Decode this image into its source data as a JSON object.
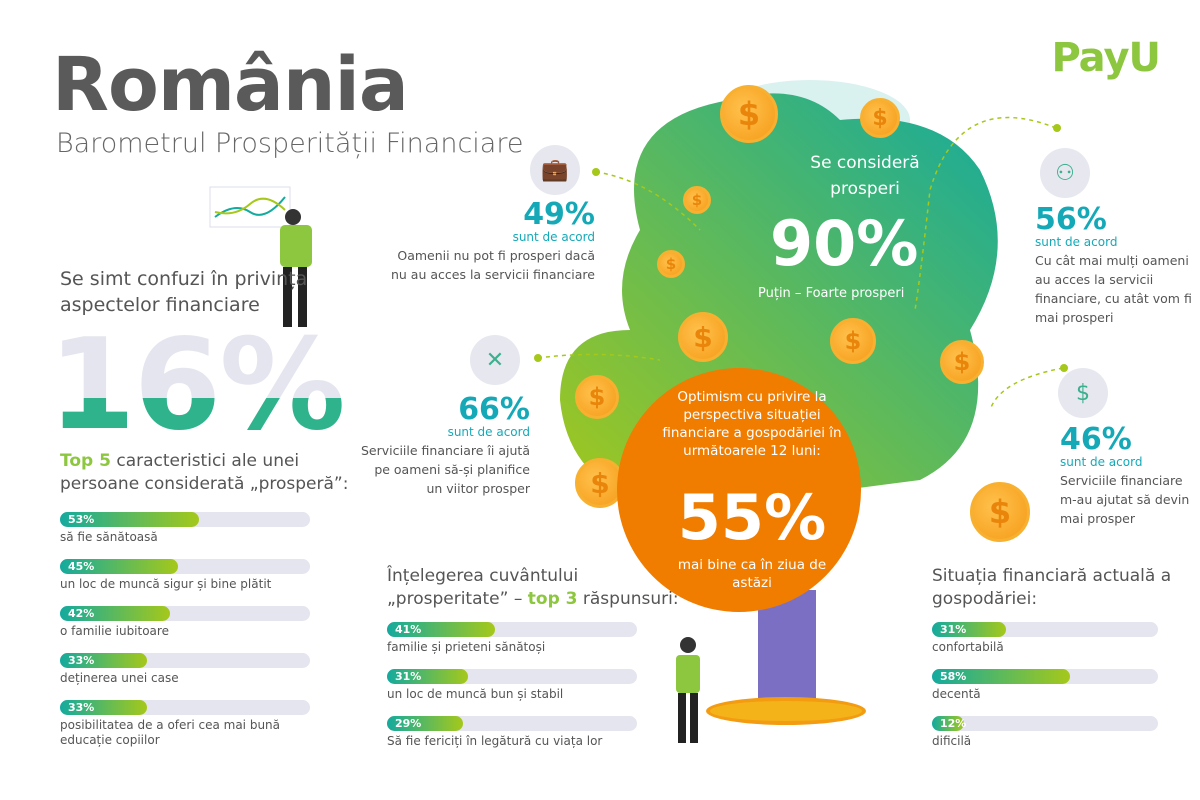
{
  "header": {
    "title": "România",
    "subtitle": "Barometrul Prosperității Financiare",
    "logo": "PayU"
  },
  "confused": {
    "text": "Se simt confuzi în privința aspectelor financiare",
    "value": "16%"
  },
  "top5": {
    "highlight": "Top 5",
    "heading": "caracteristici ale unei persoane considerată „prosperă”:",
    "items": [
      {
        "pct": "53%",
        "value": 53,
        "label": "să fie sănătoasă"
      },
      {
        "pct": "45%",
        "value": 45,
        "label": "un loc de muncă sigur și bine plătit"
      },
      {
        "pct": "42%",
        "value": 42,
        "label": "o familie iubitoare"
      },
      {
        "pct": "33%",
        "value": 33,
        "label": "deținerea unei case"
      },
      {
        "pct": "33%",
        "value": 33,
        "label": "posibilitatea de a oferi cea mai bună educație copiilor"
      }
    ]
  },
  "stats": [
    {
      "num": "49%",
      "agree": "sunt de acord",
      "desc": "Oamenii nu pot fi prosperi dacă nu au acces la servicii financiare",
      "icon": "briefcase-icon"
    },
    {
      "num": "66%",
      "agree": "sunt de acord",
      "desc": "Serviciile financiare îi ajută pe oameni să-și planifice un viitor prosper",
      "icon": "strategy-icon"
    },
    {
      "num": "56%",
      "agree": "sunt de acord",
      "desc": "Cu cât mai mulți oameni au acces la servicii financiare, cu atât vom fi mai prosperi",
      "icon": "network-icon"
    },
    {
      "num": "46%",
      "agree": "sunt de acord",
      "desc": "Serviciile financiare m-au ajutat să devin mai prosper",
      "icon": "coin-hand-icon"
    }
  ],
  "tree": {
    "top": "Se consideră prosperi",
    "value": "90%",
    "sub": "Puțin – Foarte prosperi"
  },
  "optimism": {
    "text": "Optimism cu privire la perspectiva situației financiare a gospodăriei în următoarele 12 luni:",
    "value": "55%",
    "sub": "mai bine ca în ziua de astăzi"
  },
  "top3": {
    "heading1": "Înțelegerea cuvântului",
    "heading2a": "„prosperitate” – ",
    "highlight": "top 3",
    "heading2b": " răspunsuri:",
    "items": [
      {
        "pct": "41%",
        "value": 41,
        "label": "familie și prieteni sănătoși"
      },
      {
        "pct": "31%",
        "value": 31,
        "label": "un loc de muncă bun și stabil"
      },
      {
        "pct": "29%",
        "value": 29,
        "label": "Să fie fericiți în legătură cu viața lor"
      }
    ]
  },
  "situation": {
    "heading": "Situația financiară actuală a gospodăriei:",
    "items": [
      {
        "pct": "31%",
        "value": 31,
        "label": "confortabilă"
      },
      {
        "pct": "58%",
        "value": 58,
        "label": "decentă"
      },
      {
        "pct": "12%",
        "value": 12,
        "label": "dificilă"
      }
    ]
  },
  "colors": {
    "teal": "#15a9b8",
    "green": "#8dc63f",
    "orange": "#f07c00"
  }
}
